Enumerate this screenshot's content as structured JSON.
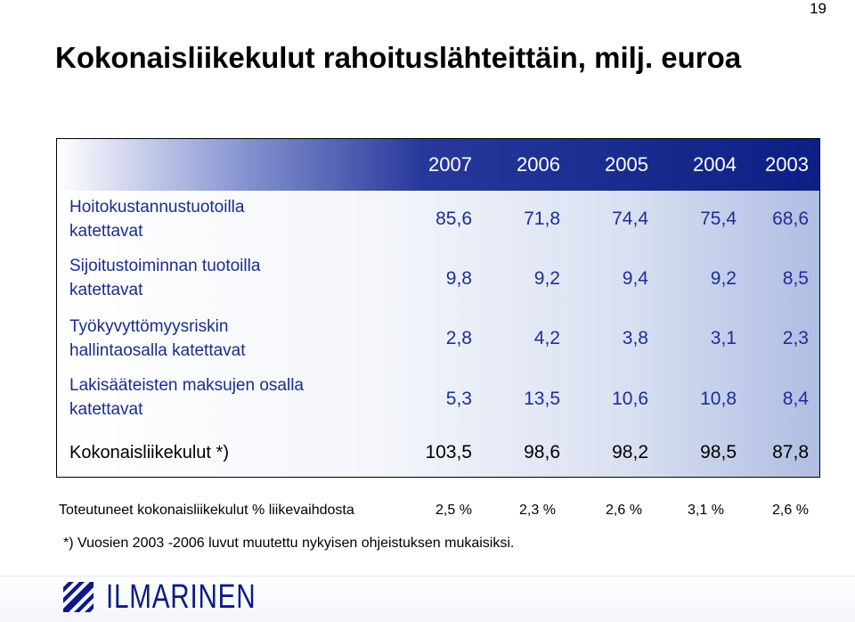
{
  "page_number": "19",
  "title": "Kokonaisliikekulut rahoituslähteittäin, milj. euroa",
  "table": {
    "years": [
      "2007",
      "2006",
      "2005",
      "2004",
      "2003"
    ],
    "rows": [
      {
        "label_lines": [
          "Hoitokustannustuotoilla",
          "katettavat"
        ],
        "values": [
          "85,6",
          "71,8",
          "74,4",
          "75,4",
          "68,6"
        ]
      },
      {
        "label_lines": [
          "Sijoitustoiminnan tuotoilla",
          "katettavat"
        ],
        "values": [
          "9,8",
          "9,2",
          "9,4",
          "9,2",
          "8,5"
        ]
      },
      {
        "label_lines": [
          "Työkyvyttömyysriskin",
          "hallintaosalla katettavat"
        ],
        "values": [
          "2,8",
          "4,2",
          "3,8",
          "3,1",
          "2,3"
        ]
      },
      {
        "label_lines": [
          "Lakisääteisten maksujen osalla",
          "katettavat"
        ],
        "values": [
          "5,3",
          "13,5",
          "10,6",
          "10,8",
          "8,4"
        ]
      }
    ],
    "total": {
      "label": "Kokonaisliikekulut *)",
      "values": [
        "103,5",
        "98,6",
        "98,2",
        "98,5",
        "87,8"
      ]
    }
  },
  "ratio_row": {
    "label": "Toteutuneet kokonaisliikekulut % liikevaihdosta",
    "values": [
      "2,5 %",
      "2,3 %",
      "2,6 %",
      "3,1 %",
      "2,6 %"
    ]
  },
  "footnote": "*) Vuosien 2003 -2006 luvut muutettu nykyisen ohjeistuksen mukaisiksi.",
  "logo": {
    "text": "ILMARINEN",
    "icon": "ilmarinen-striped-square-icon",
    "color": "#0b1a85"
  }
}
